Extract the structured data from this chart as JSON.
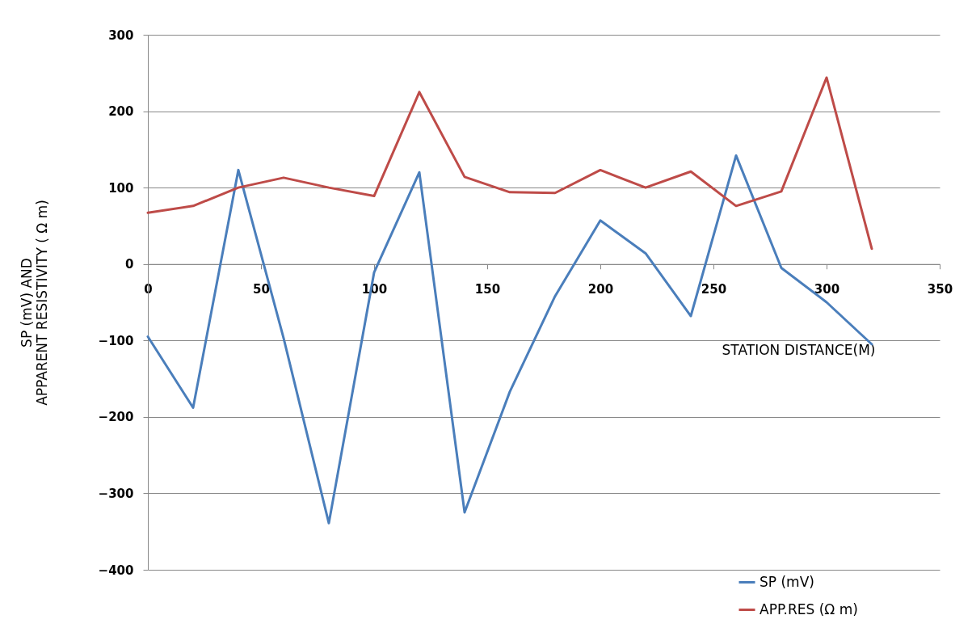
{
  "chart_data": {
    "type": "line",
    "xlabel": "STATION  DISTANCE(M)",
    "ylabel": "SP (mV)  AND\nAPPARENT RESISTIVITY ( Ω m)",
    "x": [
      0,
      20,
      40,
      60,
      80,
      100,
      120,
      140,
      160,
      180,
      200,
      220,
      240,
      260,
      280,
      300,
      320
    ],
    "series": [
      {
        "name": "SP (mV)",
        "color": "#4a7ebb",
        "values": [
          -95,
          -188,
          123,
          -97,
          -339,
          -11,
          120,
          -325,
          -167,
          -42,
          57,
          14,
          -68,
          142,
          -5,
          -50,
          -105
        ]
      },
      {
        "name": "APP.RES (Ω m)",
        "color": "#be4b48",
        "values": [
          67,
          76,
          100,
          113,
          100,
          89,
          225,
          114,
          94,
          93,
          123,
          100,
          121,
          76,
          95,
          244,
          20
        ]
      }
    ],
    "xlim": [
      0,
      350
    ],
    "xticks": [
      0,
      50,
      100,
      150,
      200,
      250,
      300,
      350
    ],
    "ylim": [
      -400,
      300
    ],
    "yticks": [
      -400,
      -300,
      -200,
      -100,
      0,
      100,
      200,
      300
    ],
    "grid": "y",
    "legend": "bottom right",
    "line_style": "solid"
  }
}
